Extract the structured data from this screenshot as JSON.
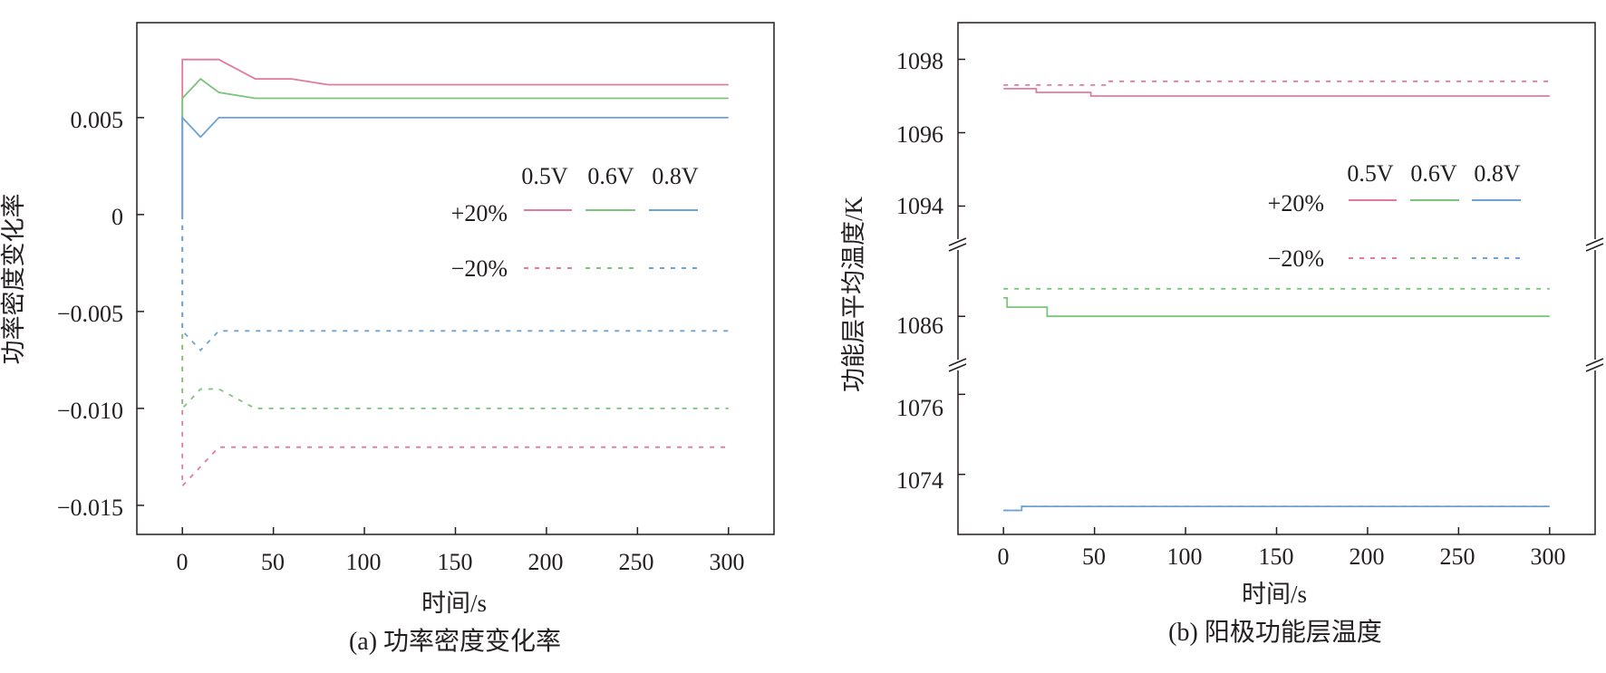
{
  "colors": {
    "v05": "#e07b9b",
    "v06": "#7cc47c",
    "v08": "#6fa3d6",
    "axis": "#231f20"
  },
  "chart_data": [
    {
      "type": "line",
      "subtitle": "(a) 功率密度变化率",
      "xlabel": "时间/s",
      "ylabel": "功率密度变化率",
      "xlim": [
        -25,
        325
      ],
      "ylim": [
        -0.0165,
        0.0099
      ],
      "xticks": [
        0,
        50,
        100,
        150,
        200,
        250,
        300
      ],
      "xtick_labels": [
        "0",
        "50",
        "100",
        "150",
        "200",
        "250",
        "300"
      ],
      "yticks": [
        0.005,
        0,
        -0.005,
        -0.01,
        -0.015
      ],
      "ytick_labels": [
        "0.005",
        "0",
        "−0.005",
        "−0.010",
        "−0.015"
      ],
      "legend": {
        "columns": [
          "0.5V",
          "0.6V",
          "0.8V"
        ],
        "rows": [
          "+20%",
          "−20%"
        ],
        "placement": "center-right"
      },
      "series": [
        {
          "voltage": "0.5V",
          "change": "+20%",
          "color": "#e07b9b",
          "dash": false,
          "x": [
            0,
            0,
            20,
            40,
            60,
            80,
            300
          ],
          "y": [
            0,
            0.008,
            0.008,
            0.007,
            0.007,
            0.0067,
            0.0067
          ]
        },
        {
          "voltage": "0.6V",
          "change": "+20%",
          "color": "#7cc47c",
          "dash": false,
          "x": [
            0,
            0,
            10,
            20,
            40,
            300
          ],
          "y": [
            0,
            0.006,
            0.007,
            0.0063,
            0.006,
            0.006
          ]
        },
        {
          "voltage": "0.8V",
          "change": "+20%",
          "color": "#6fa3d6",
          "dash": false,
          "x": [
            0,
            0,
            10,
            20,
            300
          ],
          "y": [
            0,
            0.005,
            0.004,
            0.005,
            0.005
          ]
        },
        {
          "voltage": "0.5V",
          "change": "−20%",
          "color": "#e07b9b",
          "dash": true,
          "x": [
            0,
            0,
            20,
            300
          ],
          "y": [
            0,
            -0.014,
            -0.012,
            -0.012
          ]
        },
        {
          "voltage": "0.6V",
          "change": "−20%",
          "color": "#7cc47c",
          "dash": true,
          "x": [
            0,
            0,
            10,
            20,
            40,
            300
          ],
          "y": [
            0,
            -0.01,
            -0.009,
            -0.009,
            -0.01,
            -0.01
          ]
        },
        {
          "voltage": "0.8V",
          "change": "−20%",
          "color": "#6fa3d6",
          "dash": true,
          "x": [
            0,
            0,
            10,
            20,
            300
          ],
          "y": [
            0,
            -0.006,
            -0.007,
            -0.006,
            -0.006
          ]
        }
      ]
    },
    {
      "type": "line",
      "subtitle": "(b) 阳极功能层温度",
      "xlabel": "时间/s",
      "ylabel": "功能层平均温度/K",
      "xlim": [
        -25,
        325
      ],
      "axis_breaks": true,
      "y_segments": [
        {
          "ylim": [
            1093,
            1099
          ],
          "yticks": [
            1098,
            1096,
            1094
          ],
          "ytick_labels": [
            "1098",
            "1096",
            "1094"
          ]
        },
        {
          "ylim": [
            1085.5,
            1086.8
          ],
          "yticks": [
            1086
          ],
          "ytick_labels": [
            "1086"
          ]
        },
        {
          "ylim": [
            1072.5,
            1076.8
          ],
          "yticks": [
            1076,
            1074
          ],
          "ytick_labels": [
            "1076",
            "1074"
          ]
        }
      ],
      "xticks": [
        0,
        50,
        100,
        150,
        200,
        250,
        300
      ],
      "xtick_labels": [
        "0",
        "50",
        "100",
        "150",
        "200",
        "250",
        "300"
      ],
      "legend": {
        "columns": [
          "0.5V",
          "0.6V",
          "0.8V"
        ],
        "rows": [
          "+20%",
          "−20%"
        ],
        "placement": "upper-right"
      },
      "series": [
        {
          "voltage": "0.5V",
          "change": "+20%",
          "color": "#e07b9b",
          "dash": false,
          "segment": 0,
          "step": true,
          "x": [
            0,
            18,
            48,
            300
          ],
          "y": [
            1097.2,
            1097.1,
            1097.0,
            1097.0
          ]
        },
        {
          "voltage": "0.5V",
          "change": "−20%",
          "color": "#e07b9b",
          "dash": true,
          "segment": 0,
          "step": true,
          "x": [
            0,
            58,
            300
          ],
          "y": [
            1097.3,
            1097.4,
            1097.4
          ]
        },
        {
          "voltage": "0.6V",
          "change": "+20%",
          "color": "#7cc47c",
          "dash": false,
          "segment": 1,
          "step": true,
          "x": [
            0,
            2,
            24,
            300
          ],
          "y": [
            1086.2,
            1086.1,
            1086.0,
            1086.0
          ]
        },
        {
          "voltage": "0.6V",
          "change": "−20%",
          "color": "#7cc47c",
          "dash": true,
          "segment": 1,
          "step": true,
          "x": [
            0,
            300
          ],
          "y": [
            1086.3,
            1086.3
          ]
        },
        {
          "voltage": "0.8V",
          "change": "+20%",
          "color": "#6fa3d6",
          "dash": false,
          "segment": 2,
          "step": true,
          "x": [
            0,
            10,
            300
          ],
          "y": [
            1073.1,
            1073.2,
            1073.2
          ]
        },
        {
          "voltage": "0.8V",
          "change": "−20%",
          "color": "#6fa3d6",
          "dash": true,
          "segment": 2,
          "step": true,
          "x": [
            0,
            10,
            300
          ],
          "y": [
            1073.1,
            1073.2,
            1073.2
          ]
        }
      ]
    }
  ]
}
